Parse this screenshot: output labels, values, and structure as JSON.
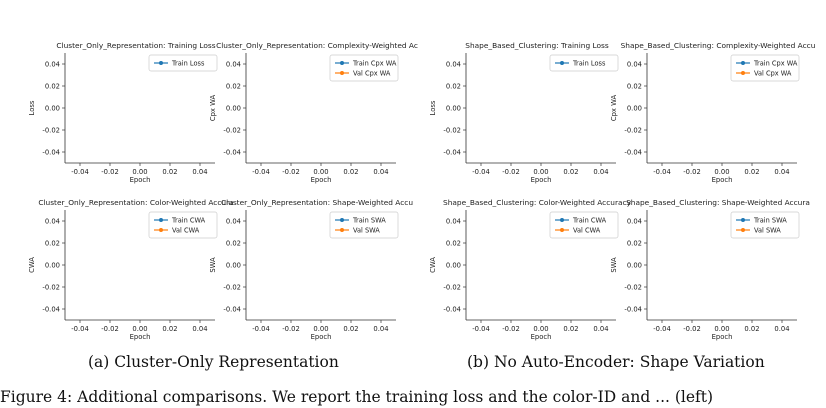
{
  "captions": {
    "a": "(a) Cluster-Only Representation",
    "b": "(b) No Auto-Encoder: Shape Variation"
  },
  "body_text": "Figure 4: Additional comparisons. We report the training loss and the color-ID and ... (left)",
  "colors": {
    "train": "#1f77b4",
    "val": "#ff7f0e"
  },
  "chart_data": [
    {
      "type": "line",
      "title": "Cluster_Only_Representation: Training Loss",
      "xlabel": "Epoch",
      "ylabel": "Loss",
      "xlim": [
        -0.05,
        0.05
      ],
      "ylim": [
        -0.05,
        0.05
      ],
      "xticks": [
        "-0.04",
        "-0.02",
        "0.00",
        "0.02",
        "0.04"
      ],
      "yticks": [
        "0.04",
        "0.02",
        "0.00",
        "-0.02",
        "-0.04"
      ],
      "grid": false,
      "legend": "top-right",
      "series": [
        {
          "name": "Train Loss",
          "x": [],
          "y": []
        }
      ]
    },
    {
      "type": "line",
      "title": "Cluster_Only_Representation: Complexity-Weighted Ac",
      "xlabel": "Epoch",
      "ylabel": "Cpx WA",
      "xlim": [
        -0.05,
        0.05
      ],
      "ylim": [
        -0.05,
        0.05
      ],
      "xticks": [
        "-0.04",
        "-0.02",
        "0.00",
        "0.02",
        "0.04"
      ],
      "yticks": [
        "0.04",
        "0.02",
        "0.00",
        "-0.02",
        "-0.04"
      ],
      "grid": false,
      "legend": "top-right",
      "series": [
        {
          "name": "Train Cpx WA",
          "x": [],
          "y": []
        },
        {
          "name": "Val Cpx WA",
          "x": [],
          "y": []
        }
      ]
    },
    {
      "type": "line",
      "title": "Cluster_Only_Representation: Color-Weighted Accura",
      "xlabel": "Epoch",
      "ylabel": "CWA",
      "xlim": [
        -0.05,
        0.05
      ],
      "ylim": [
        -0.05,
        0.05
      ],
      "xticks": [
        "-0.04",
        "-0.02",
        "0.00",
        "0.02",
        "0.04"
      ],
      "yticks": [
        "0.04",
        "0.02",
        "0.00",
        "-0.02",
        "-0.04"
      ],
      "grid": false,
      "legend": "top-right",
      "series": [
        {
          "name": "Train CWA",
          "x": [],
          "y": []
        },
        {
          "name": "Val CWA",
          "x": [],
          "y": []
        }
      ]
    },
    {
      "type": "line",
      "title": "Cluster_Only_Representation: Shape-Weighted Accu",
      "xlabel": "Epoch",
      "ylabel": "SWA",
      "xlim": [
        -0.05,
        0.05
      ],
      "ylim": [
        -0.05,
        0.05
      ],
      "xticks": [
        "-0.04",
        "-0.02",
        "0.00",
        "0.02",
        "0.04"
      ],
      "yticks": [
        "0.04",
        "0.02",
        "0.00",
        "-0.02",
        "-0.04"
      ],
      "grid": false,
      "legend": "top-right",
      "series": [
        {
          "name": "Train SWA",
          "x": [],
          "y": []
        },
        {
          "name": "Val SWA",
          "x": [],
          "y": []
        }
      ]
    },
    {
      "type": "line",
      "title": "Shape_Based_Clustering: Training Loss",
      "xlabel": "Epoch",
      "ylabel": "Loss",
      "xlim": [
        -0.05,
        0.05
      ],
      "ylim": [
        -0.05,
        0.05
      ],
      "xticks": [
        "-0.04",
        "-0.02",
        "0.00",
        "0.02",
        "0.04"
      ],
      "yticks": [
        "0.04",
        "0.02",
        "0.00",
        "-0.02",
        "-0.04"
      ],
      "grid": false,
      "legend": "top-right",
      "series": [
        {
          "name": "Train Loss",
          "x": [],
          "y": []
        }
      ]
    },
    {
      "type": "line",
      "title": "Shape_Based_Clustering: Complexity-Weighted Accu",
      "xlabel": "Epoch",
      "ylabel": "Cpx WA",
      "xlim": [
        -0.05,
        0.05
      ],
      "ylim": [
        -0.05,
        0.05
      ],
      "xticks": [
        "-0.04",
        "-0.02",
        "0.00",
        "0.02",
        "0.04"
      ],
      "yticks": [
        "0.04",
        "0.02",
        "0.00",
        "-0.02",
        "-0.04"
      ],
      "grid": false,
      "legend": "top-right",
      "series": [
        {
          "name": "Train Cpx WA",
          "x": [],
          "y": []
        },
        {
          "name": "Val Cpx WA",
          "x": [],
          "y": []
        }
      ]
    },
    {
      "type": "line",
      "title": "Shape_Based_Clustering: Color-Weighted Accuracy",
      "xlabel": "Epoch",
      "ylabel": "CWA",
      "xlim": [
        -0.05,
        0.05
      ],
      "ylim": [
        -0.05,
        0.05
      ],
      "xticks": [
        "-0.04",
        "-0.02",
        "0.00",
        "0.02",
        "0.04"
      ],
      "yticks": [
        "0.04",
        "0.02",
        "0.00",
        "-0.02",
        "-0.04"
      ],
      "grid": false,
      "legend": "top-right",
      "series": [
        {
          "name": "Train CWA",
          "x": [],
          "y": []
        },
        {
          "name": "Val CWA",
          "x": [],
          "y": []
        }
      ]
    },
    {
      "type": "line",
      "title": "Shape_Based_Clustering: Shape-Weighted Accura",
      "xlabel": "Epoch",
      "ylabel": "SWA",
      "xlim": [
        -0.05,
        0.05
      ],
      "ylim": [
        -0.05,
        0.05
      ],
      "xticks": [
        "-0.04",
        "-0.02",
        "0.00",
        "0.02",
        "0.04"
      ],
      "yticks": [
        "0.04",
        "0.02",
        "0.00",
        "-0.02",
        "-0.04"
      ],
      "grid": false,
      "legend": "top-right",
      "series": [
        {
          "name": "Train SWA",
          "x": [],
          "y": []
        },
        {
          "name": "Val SWA",
          "x": [],
          "y": []
        }
      ]
    }
  ]
}
